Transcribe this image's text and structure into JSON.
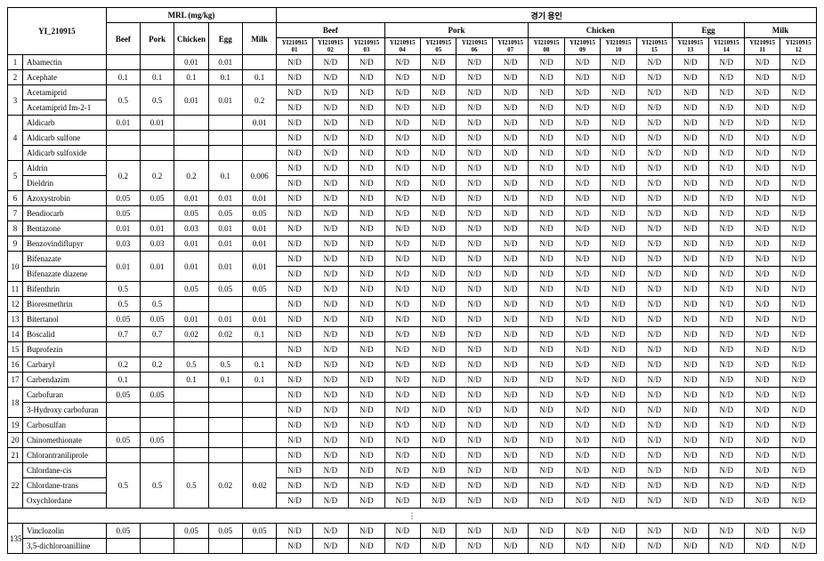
{
  "table_id": "YI_210915",
  "mrl_group_label": "MRL (mg/kg)",
  "region_group_label": "경기 용인",
  "mrl_cols": [
    "Beef",
    "Pork",
    "Chicken",
    "Egg",
    "Milk"
  ],
  "region_groups": [
    {
      "label": "Beef",
      "subs": [
        "YI210915 01",
        "YI210915 02",
        "YI210915 03"
      ]
    },
    {
      "label": "Pork",
      "subs": [
        "YI210915 04",
        "YI210915 05",
        "YI210915 06",
        "YI210915 07"
      ]
    },
    {
      "label": "Chicken",
      "subs": [
        "YI210915 08",
        "YI210915 09",
        "YI210915 10",
        "YI210915 15"
      ]
    },
    {
      "label": "Egg",
      "subs": [
        "YI210915 13",
        "YI210915 14"
      ]
    },
    {
      "label": "Milk",
      "subs": [
        "YI210915 11",
        "YI210915 12"
      ]
    }
  ],
  "nd": "N/D",
  "ellipsis": "⋮",
  "colors": {
    "border": "#000000",
    "bg": "#ffffff",
    "text": "#000000"
  },
  "font": {
    "family": "Times New Roman",
    "base_size_pt": 9
  },
  "rows": [
    {
      "idx": "1",
      "names": [
        "Abamectin"
      ],
      "mrl": [
        [
          "",
          "",
          "0.01",
          "0.01",
          ""
        ]
      ]
    },
    {
      "idx": "2",
      "names": [
        "Acephate"
      ],
      "mrl": [
        [
          "0.1",
          "0.1",
          "0.1",
          "0.1",
          "0.1"
        ]
      ]
    },
    {
      "idx": "3",
      "names": [
        "Acetamiprid",
        "Acetamiprid Im-2-1"
      ],
      "mrl": [
        [
          "0.5",
          "0.5",
          "0.01",
          "0.01",
          "0.2"
        ]
      ],
      "merge_mrl": true
    },
    {
      "idx": "4",
      "names": [
        "Aldicarb",
        "Aldicarb sulfone",
        "Aldicarb sulfoxide"
      ],
      "mrl": [
        [
          "0.01",
          "0.01",
          "",
          "",
          "0.01"
        ],
        [
          "",
          "",
          "",
          "",
          ""
        ],
        [
          "",
          "",
          "",
          "",
          ""
        ]
      ]
    },
    {
      "idx": "5",
      "names": [
        "Aldrin",
        "Dieldrin"
      ],
      "mrl": [
        [
          "0.2",
          "0.2",
          "0.2",
          "0.1",
          "0.006"
        ]
      ],
      "merge_mrl": true
    },
    {
      "idx": "6",
      "names": [
        "Azoxystrobin"
      ],
      "mrl": [
        [
          "0.05",
          "0.05",
          "0.01",
          "0.01",
          "0.01"
        ]
      ]
    },
    {
      "idx": "7",
      "names": [
        "Bendiocarb"
      ],
      "mrl": [
        [
          "0.05",
          "",
          "0.05",
          "0.05",
          "0.05"
        ]
      ]
    },
    {
      "idx": "8",
      "names": [
        "Bentazone"
      ],
      "mrl": [
        [
          "0.01",
          "0.01",
          "0.03",
          "0.01",
          "0.01"
        ]
      ]
    },
    {
      "idx": "9",
      "names": [
        "Benzovindiflupyr"
      ],
      "mrl": [
        [
          "0.03",
          "0.03",
          "0.01",
          "0.01",
          "0.01"
        ]
      ]
    },
    {
      "idx": "10",
      "names": [
        "Bifenazate",
        "Bifenazate diazene"
      ],
      "mrl": [
        [
          "0.01",
          "0.01",
          "0.01",
          "0.01",
          "0.01"
        ]
      ],
      "merge_mrl": true
    },
    {
      "idx": "11",
      "names": [
        "Bifenthrin"
      ],
      "mrl": [
        [
          "0.5",
          "",
          "0.05",
          "0.05",
          "0.05"
        ]
      ]
    },
    {
      "idx": "12",
      "names": [
        "Bioresmethrin"
      ],
      "mrl": [
        [
          "0.5",
          "0.5",
          "",
          "",
          ""
        ]
      ]
    },
    {
      "idx": "13",
      "names": [
        "Bitertanol"
      ],
      "mrl": [
        [
          "0.05",
          "0.05",
          "0.01",
          "0.01",
          "0.01"
        ]
      ]
    },
    {
      "idx": "14",
      "names": [
        "Boscalid"
      ],
      "mrl": [
        [
          "0.7",
          "0.7",
          "0.02",
          "0.02",
          "0.1"
        ]
      ]
    },
    {
      "idx": "15",
      "names": [
        "Buprofezin"
      ],
      "mrl": [
        [
          "",
          "",
          "",
          "",
          ""
        ]
      ]
    },
    {
      "idx": "16",
      "names": [
        "Carbaryl"
      ],
      "mrl": [
        [
          "0.2",
          "0.2",
          "0.5",
          "0.5",
          "0.1"
        ]
      ]
    },
    {
      "idx": "17",
      "names": [
        "Carbendazim"
      ],
      "mrl": [
        [
          "0.1",
          "",
          "0.1",
          "0.1",
          "0.1"
        ]
      ]
    },
    {
      "idx": "18",
      "names": [
        "Carbofuran",
        "3-Hydroxy carbofuran"
      ],
      "mrl": [
        [
          "0.05",
          "0.05",
          "",
          "",
          ""
        ],
        [
          "",
          "",
          "",
          "",
          ""
        ]
      ]
    },
    {
      "idx": "19",
      "names": [
        "Carbosulfan"
      ],
      "mrl": [
        [
          "",
          "",
          "",
          "",
          ""
        ]
      ]
    },
    {
      "idx": "20",
      "names": [
        "Chinomethionate"
      ],
      "mrl": [
        [
          "0.05",
          "0.05",
          "",
          "",
          ""
        ]
      ]
    },
    {
      "idx": "21",
      "names": [
        "Chlorantraniliprole"
      ],
      "mrl": [
        [
          "",
          "",
          "",
          "",
          ""
        ]
      ]
    },
    {
      "idx": "22",
      "names": [
        "Chlordane-cis",
        "Chlordane-trans",
        "Oxychlordane"
      ],
      "mrl": [
        [
          "0.5",
          "0.5",
          "0.5",
          "0.02",
          "0.02"
        ]
      ],
      "merge_mrl": true
    },
    {
      "ellipsis": true
    },
    {
      "idx": "135",
      "names": [
        "Vinclozolin",
        "3,5-dichloroanilline"
      ],
      "mrl": [
        [
          "0.05",
          "",
          "0.05",
          "0.05",
          "0.05"
        ],
        [
          "",
          "",
          "",
          "",
          ""
        ]
      ]
    }
  ]
}
